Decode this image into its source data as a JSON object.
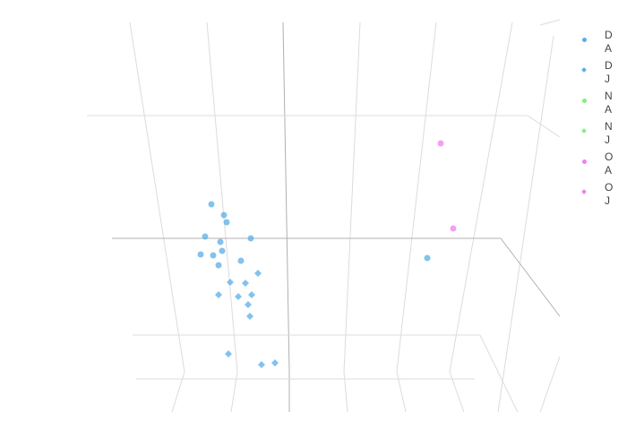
{
  "chart_data": {
    "type": "scatter3d",
    "title": "",
    "series": [
      {
        "name": "DA",
        "color": "#5aaee8",
        "symbol": "circle",
        "points": [
          [
            236,
            228
          ],
          [
            250,
            240
          ],
          [
            253,
            248
          ],
          [
            229,
            264
          ],
          [
            246,
            270
          ],
          [
            280,
            266
          ],
          [
            248,
            280
          ],
          [
            224,
            284
          ],
          [
            238,
            285
          ],
          [
            269,
            291
          ],
          [
            244,
            296
          ],
          [
            477,
            288
          ]
        ]
      },
      {
        "name": "DJ",
        "color": "#5aaee8",
        "symbol": "diamond",
        "points": [
          [
            288,
            305
          ],
          [
            257,
            315
          ],
          [
            274,
            316
          ],
          [
            244,
            329
          ],
          [
            266,
            331
          ],
          [
            281,
            329
          ],
          [
            277,
            340
          ],
          [
            279,
            353
          ],
          [
            255,
            395
          ],
          [
            292,
            407
          ],
          [
            307,
            405
          ]
        ]
      },
      {
        "name": "NA",
        "color": "#7ff07f",
        "symbol": "circle",
        "points": []
      },
      {
        "name": "NJ",
        "color": "#7ff07f",
        "symbol": "diamond",
        "points": []
      },
      {
        "name": "OA",
        "color": "#f07ff0",
        "symbol": "circle",
        "points": [
          [
            492,
            160
          ],
          [
            506,
            255
          ]
        ]
      },
      {
        "name": "OJ",
        "color": "#f07ff0",
        "symbol": "diamond",
        "points": []
      }
    ],
    "grid": true,
    "legend_position": "right"
  },
  "legend": {
    "items": [
      {
        "label": "DA",
        "color": "#5aaee8",
        "symbol": "circle"
      },
      {
        "label": "DJ",
        "color": "#5aaee8",
        "symbol": "diamond"
      },
      {
        "label": "NA",
        "color": "#7ff07f",
        "symbol": "circle"
      },
      {
        "label": "NJ",
        "color": "#7ff07f",
        "symbol": "diamond"
      },
      {
        "label": "OA",
        "color": "#f07ff0",
        "symbol": "circle"
      },
      {
        "label": "OJ",
        "color": "#f07ff0",
        "symbol": "diamond"
      }
    ]
  }
}
